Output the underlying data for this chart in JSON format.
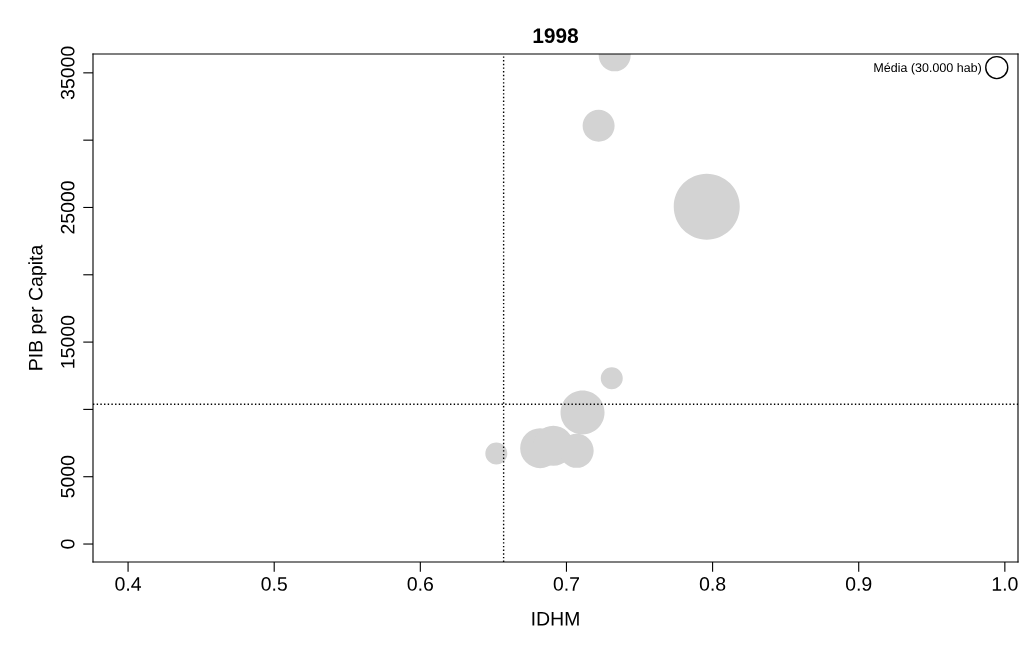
{
  "chart_data": {
    "type": "bubble",
    "title": "1998",
    "xlabel": "IDHM",
    "ylabel": "PIB per Capita",
    "x": [
      0.733,
      0.722,
      0.796,
      0.731,
      0.711,
      0.682,
      0.691,
      0.707,
      0.652
    ],
    "values": [
      36300,
      31070,
      25060,
      12310,
      9770,
      7120,
      7300,
      6920,
      6730
    ],
    "sizes": [
      63500,
      63500,
      270000,
      30000,
      120000,
      99000,
      99000,
      71600,
      30000
    ],
    "size_legend": [
      {
        "value": 30000,
        "label": "Média (30.000 hab)"
      }
    ],
    "color": "#d3d3d3",
    "marker": "circle",
    "xlim": [
      0.376,
      1.009
    ],
    "ylim": [
      -1335,
      36400
    ],
    "xticks": [
      0.4,
      0.5,
      0.6,
      0.7,
      0.8,
      0.9,
      {
        "value": 1.0,
        "label": "1.0"
      }
    ],
    "yticks": [
      0,
      5000,
      {
        "value": 10000,
        "label": null
      },
      15000,
      {
        "value": 20000,
        "label": null
      },
      25000,
      {
        "value": 30000,
        "label": null
      },
      35000
    ],
    "ref_lines": [
      {
        "axis": "x",
        "value": 0.657,
        "line_style": "dotted",
        "color": "#000000"
      },
      {
        "axis": "y",
        "value": 10380,
        "line_style": "dotted",
        "color": "#000000"
      }
    ],
    "grid": false
  }
}
